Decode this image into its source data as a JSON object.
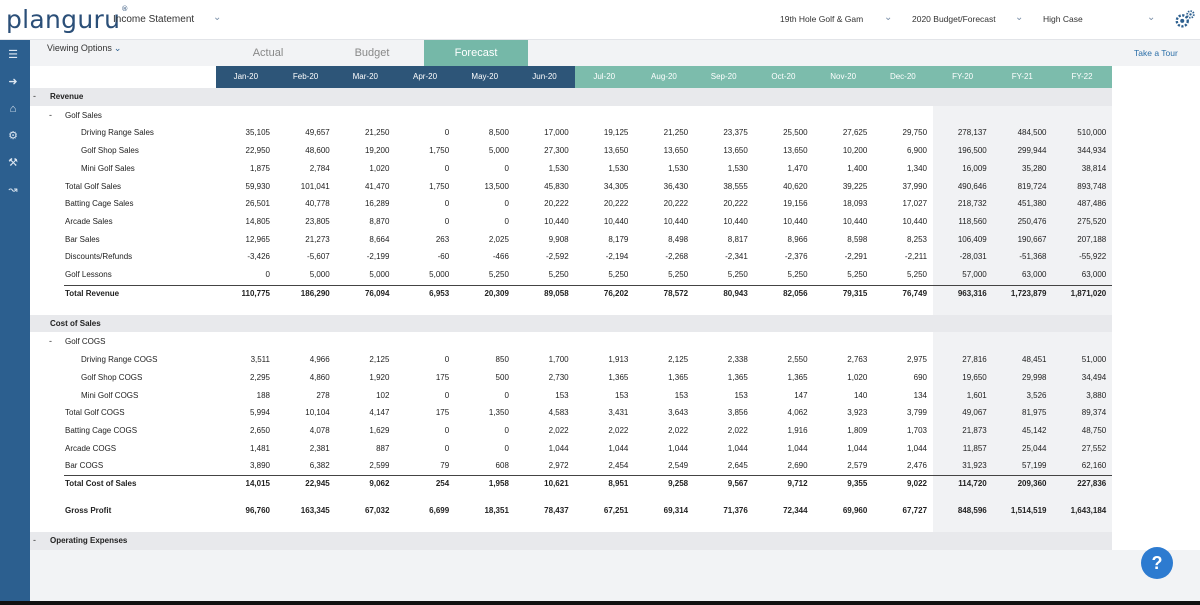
{
  "app": {
    "logo": "planguru",
    "logo_mark": "®"
  },
  "topbar": {
    "report": "Income Statement",
    "company": "19th Hole Golf & Gam",
    "plan": "2020 Budget/Forecast",
    "scenario": "High Case"
  },
  "viewing_options": "Viewing Options",
  "take_tour": "Take a Tour",
  "tabs": [
    "Actual",
    "Budget",
    "Forecast"
  ],
  "active_tab": "Forecast",
  "columns": [
    "Jan-20",
    "Feb-20",
    "Mar-20",
    "Apr-20",
    "May-20",
    "Jun-20",
    "Jul-20",
    "Aug-20",
    "Sep-20",
    "Oct-20",
    "Nov-20",
    "Dec-20",
    "FY-20",
    "FY-21",
    "FY-22"
  ],
  "colors": {
    "sidebar": "#2c5f8f",
    "header_actual": "#2d5578",
    "header_forecast": "#7cbcac",
    "accent": "#2d7bd0"
  },
  "rows": [
    {
      "label": "Revenue",
      "type": "section",
      "indent": 0,
      "minus": true,
      "values": []
    },
    {
      "label": "Golf Sales",
      "type": "group",
      "indent": 1,
      "minus": true,
      "values": []
    },
    {
      "label": "Driving Range Sales",
      "type": "item",
      "indent": 2,
      "values": [
        "35,105",
        "49,657",
        "21,250",
        "0",
        "8,500",
        "17,000",
        "19,125",
        "21,250",
        "23,375",
        "25,500",
        "27,625",
        "29,750",
        "278,137",
        "484,500",
        "510,000"
      ]
    },
    {
      "label": "Golf Shop Sales",
      "type": "item",
      "indent": 2,
      "values": [
        "22,950",
        "48,600",
        "19,200",
        "1,750",
        "5,000",
        "27,300",
        "13,650",
        "13,650",
        "13,650",
        "13,650",
        "10,200",
        "6,900",
        "196,500",
        "299,944",
        "344,934"
      ]
    },
    {
      "label": "Mini Golf Sales",
      "type": "item",
      "indent": 2,
      "values": [
        "1,875",
        "2,784",
        "1,020",
        "0",
        "0",
        "1,530",
        "1,530",
        "1,530",
        "1,530",
        "1,470",
        "1,400",
        "1,340",
        "16,009",
        "35,280",
        "38,814"
      ]
    },
    {
      "label": "Total Golf Sales",
      "type": "item",
      "indent": 1,
      "values": [
        "59,930",
        "101,041",
        "41,470",
        "1,750",
        "13,500",
        "45,830",
        "34,305",
        "36,430",
        "38,555",
        "40,620",
        "39,225",
        "37,990",
        "490,646",
        "819,724",
        "893,748"
      ]
    },
    {
      "label": "Batting Cage Sales",
      "type": "item",
      "indent": 1,
      "values": [
        "26,501",
        "40,778",
        "16,289",
        "0",
        "0",
        "20,222",
        "20,222",
        "20,222",
        "20,222",
        "19,156",
        "18,093",
        "17,027",
        "218,732",
        "451,380",
        "487,486"
      ]
    },
    {
      "label": "Arcade Sales",
      "type": "item",
      "indent": 1,
      "values": [
        "14,805",
        "23,805",
        "8,870",
        "0",
        "0",
        "10,440",
        "10,440",
        "10,440",
        "10,440",
        "10,440",
        "10,440",
        "10,440",
        "118,560",
        "250,476",
        "275,520"
      ]
    },
    {
      "label": "Bar Sales",
      "type": "item",
      "indent": 1,
      "values": [
        "12,965",
        "21,273",
        "8,664",
        "263",
        "2,025",
        "9,908",
        "8,179",
        "8,498",
        "8,817",
        "8,966",
        "8,598",
        "8,253",
        "106,409",
        "190,667",
        "207,188"
      ]
    },
    {
      "label": "Discounts/Refunds",
      "type": "item",
      "indent": 1,
      "values": [
        "-3,426",
        "-5,607",
        "-2,199",
        "-60",
        "-466",
        "-2,592",
        "-2,194",
        "-2,268",
        "-2,341",
        "-2,376",
        "-2,291",
        "-2,211",
        "-28,031",
        "-51,368",
        "-55,922"
      ]
    },
    {
      "label": "Golf Lessons",
      "type": "item",
      "indent": 1,
      "values": [
        "0",
        "5,000",
        "5,000",
        "5,000",
        "5,250",
        "5,250",
        "5,250",
        "5,250",
        "5,250",
        "5,250",
        "5,250",
        "5,250",
        "57,000",
        "63,000",
        "63,000"
      ]
    },
    {
      "label": "Total Revenue",
      "type": "total",
      "indent": 1,
      "values": [
        "110,775",
        "186,290",
        "76,094",
        "6,953",
        "20,309",
        "89,058",
        "76,202",
        "78,572",
        "80,943",
        "82,056",
        "79,315",
        "76,749",
        "963,316",
        "1,723,879",
        "1,871,020"
      ]
    },
    {
      "label": "",
      "type": "spacer",
      "values": []
    },
    {
      "label": "Cost of Sales",
      "type": "section",
      "indent": 0,
      "minus": false,
      "values": []
    },
    {
      "label": "Golf COGS",
      "type": "group",
      "indent": 1,
      "minus": true,
      "values": []
    },
    {
      "label": "Driving Range COGS",
      "type": "item",
      "indent": 2,
      "values": [
        "3,511",
        "4,966",
        "2,125",
        "0",
        "850",
        "1,700",
        "1,913",
        "2,125",
        "2,338",
        "2,550",
        "2,763",
        "2,975",
        "27,816",
        "48,451",
        "51,000"
      ]
    },
    {
      "label": "Golf Shop COGS",
      "type": "item",
      "indent": 2,
      "values": [
        "2,295",
        "4,860",
        "1,920",
        "175",
        "500",
        "2,730",
        "1,365",
        "1,365",
        "1,365",
        "1,365",
        "1,020",
        "690",
        "19,650",
        "29,998",
        "34,494"
      ]
    },
    {
      "label": "Mini Golf COGS",
      "type": "item",
      "indent": 2,
      "values": [
        "188",
        "278",
        "102",
        "0",
        "0",
        "153",
        "153",
        "153",
        "153",
        "147",
        "140",
        "134",
        "1,601",
        "3,526",
        "3,880"
      ]
    },
    {
      "label": "Total Golf COGS",
      "type": "item",
      "indent": 1,
      "values": [
        "5,994",
        "10,104",
        "4,147",
        "175",
        "1,350",
        "4,583",
        "3,431",
        "3,643",
        "3,856",
        "4,062",
        "3,923",
        "3,799",
        "49,067",
        "81,975",
        "89,374"
      ]
    },
    {
      "label": "Batting Cage COGS",
      "type": "item",
      "indent": 1,
      "values": [
        "2,650",
        "4,078",
        "1,629",
        "0",
        "0",
        "2,022",
        "2,022",
        "2,022",
        "2,022",
        "1,916",
        "1,809",
        "1,703",
        "21,873",
        "45,142",
        "48,750"
      ]
    },
    {
      "label": "Arcade COGS",
      "type": "item",
      "indent": 1,
      "values": [
        "1,481",
        "2,381",
        "887",
        "0",
        "0",
        "1,044",
        "1,044",
        "1,044",
        "1,044",
        "1,044",
        "1,044",
        "1,044",
        "11,857",
        "25,044",
        "27,552"
      ]
    },
    {
      "label": "Bar COGS",
      "type": "item",
      "indent": 1,
      "values": [
        "3,890",
        "6,382",
        "2,599",
        "79",
        "608",
        "2,972",
        "2,454",
        "2,549",
        "2,645",
        "2,690",
        "2,579",
        "2,476",
        "31,923",
        "57,199",
        "62,160"
      ]
    },
    {
      "label": "Total Cost of Sales",
      "type": "total",
      "indent": 1,
      "values": [
        "14,015",
        "22,945",
        "9,062",
        "254",
        "1,958",
        "10,621",
        "8,951",
        "9,258",
        "9,567",
        "9,712",
        "9,355",
        "9,022",
        "114,720",
        "209,360",
        "227,836"
      ]
    },
    {
      "label": "",
      "type": "spacer",
      "values": []
    },
    {
      "label": "Gross Profit",
      "type": "bold",
      "indent": 1,
      "values": [
        "96,760",
        "163,345",
        "67,032",
        "6,699",
        "18,351",
        "78,437",
        "67,251",
        "69,314",
        "71,376",
        "72,344",
        "69,960",
        "67,727",
        "848,596",
        "1,514,519",
        "1,643,184"
      ]
    },
    {
      "label": "",
      "type": "spacer",
      "values": []
    },
    {
      "label": "Operating Expenses",
      "type": "section",
      "indent": 0,
      "minus": true,
      "values": []
    }
  ]
}
